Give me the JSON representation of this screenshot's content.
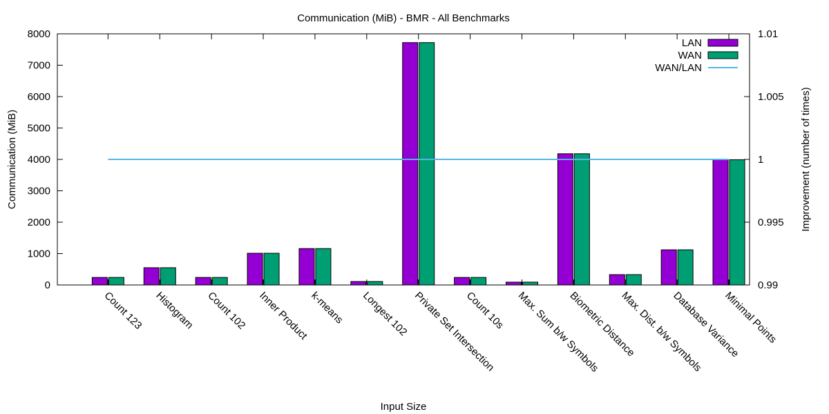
{
  "chart_data": {
    "type": "bar",
    "title": "Communication (MiB) - BMR - All Benchmarks",
    "xlabel": "Input Size",
    "ylabel": "Communication (MiB)",
    "y2label": "Improvement (number of times)",
    "ylim": [
      0,
      8000
    ],
    "yticks": [
      "0",
      "1000",
      "2000",
      "3000",
      "4000",
      "5000",
      "6000",
      "7000",
      "8000"
    ],
    "y2lim": [
      0.99,
      1.01
    ],
    "y2ticks": [
      "0.99",
      "0.995",
      "1",
      "1.005",
      "1.01"
    ],
    "categories": [
      "Count 123",
      "Histogram",
      "Count 102",
      "Inner Product",
      "k-means",
      "Longest 102",
      "Private Set Intersection",
      "Count 10s",
      "Max. Sum b/w Symbols",
      "Biometric Distance",
      "Max. Dist. b/w Symbols",
      "Database Variance",
      "Minimal Points"
    ],
    "series": [
      {
        "name": "LAN",
        "color": "#9400d3",
        "axis": "left",
        "kind": "bar",
        "values": [
          240,
          550,
          240,
          1010,
          1160,
          110,
          7720,
          240,
          90,
          4180,
          330,
          1120,
          3990
        ]
      },
      {
        "name": "WAN",
        "color": "#009e73",
        "axis": "left",
        "kind": "bar",
        "values": [
          240,
          550,
          240,
          1010,
          1160,
          110,
          7720,
          240,
          90,
          4180,
          330,
          1120,
          3990
        ]
      },
      {
        "name": "WAN/LAN",
        "color": "#56b4e9",
        "axis": "right",
        "kind": "line",
        "values": [
          1,
          1,
          1,
          1,
          1,
          1,
          1,
          1,
          1,
          1,
          1,
          1,
          1
        ]
      }
    ],
    "legend_position": "top-right",
    "grid": false
  }
}
